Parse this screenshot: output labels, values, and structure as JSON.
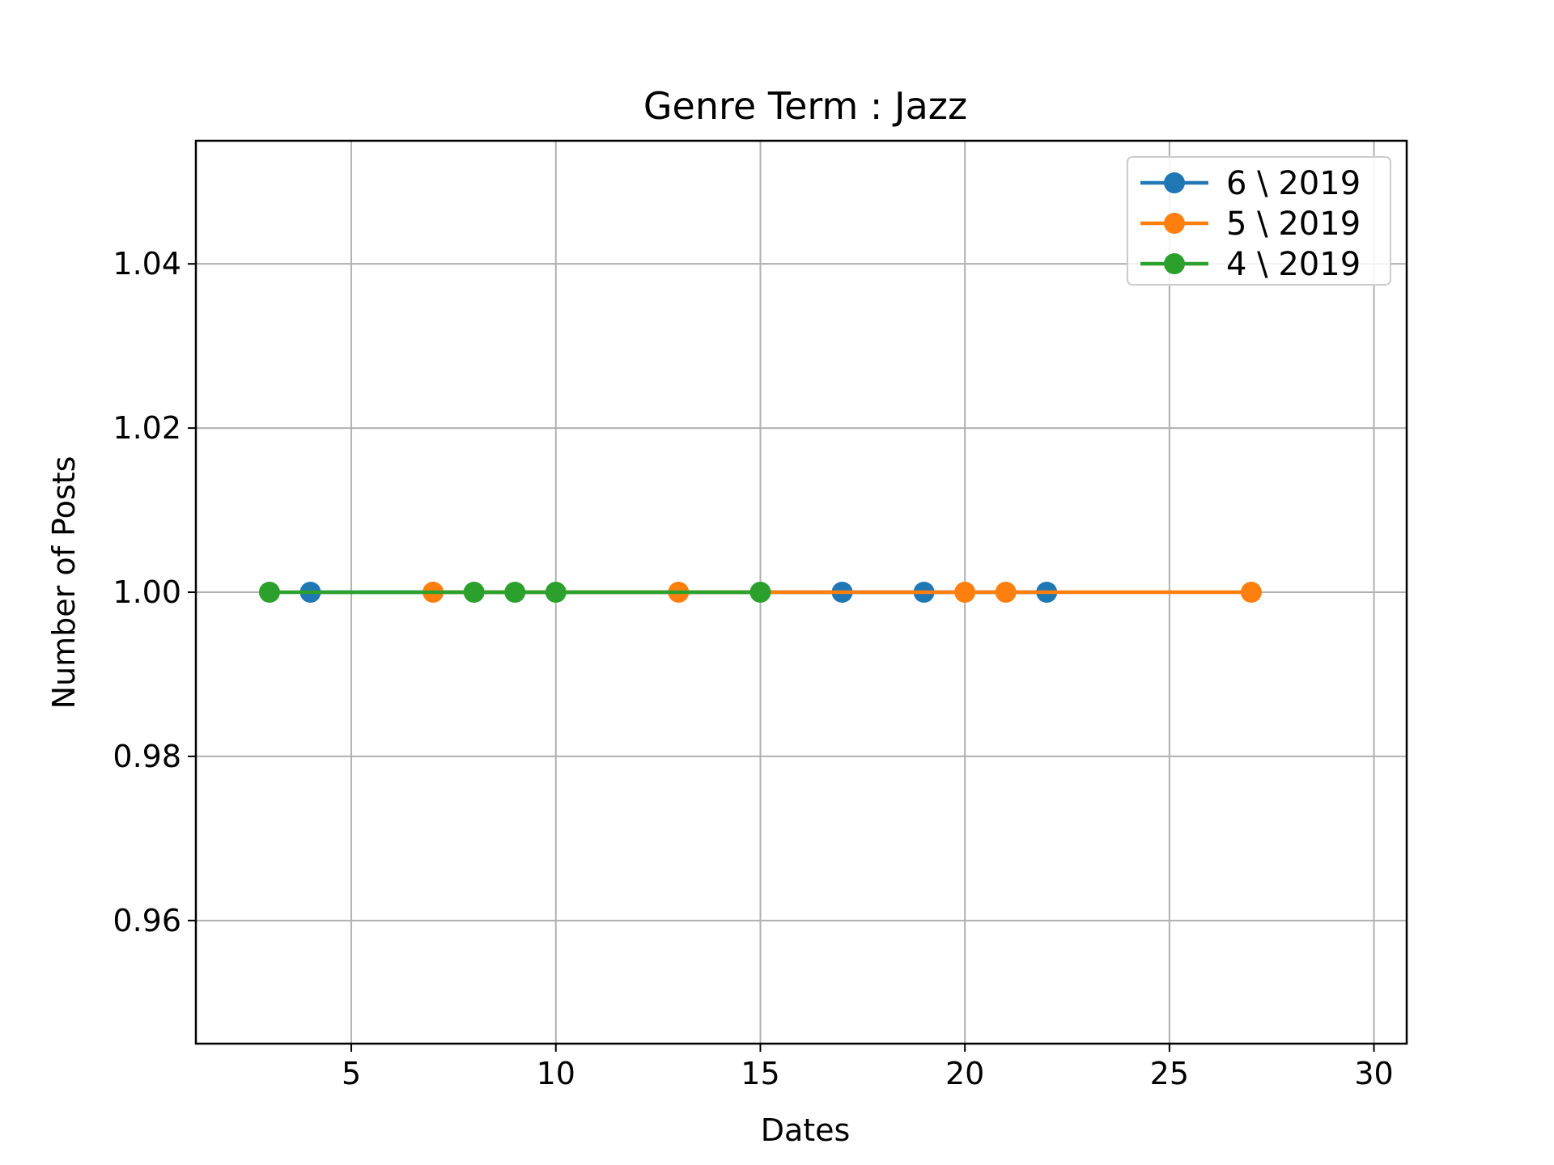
{
  "chart_data": {
    "type": "line",
    "title": "Genre Term : Jazz",
    "xlabel": "Dates",
    "ylabel": "Number of Posts",
    "xlim": [
      1.2,
      30.8
    ],
    "ylim": [
      0.945,
      1.055
    ],
    "xticks": [
      5,
      10,
      15,
      20,
      25,
      30
    ],
    "yticks": [
      0.96,
      0.98,
      1.0,
      1.02,
      1.04
    ],
    "ytick_labels": [
      "0.96",
      "0.98",
      "1.00",
      "1.02",
      "1.04"
    ],
    "grid": true,
    "legend_position": "top-right",
    "series": [
      {
        "name": "6 \\ 2019",
        "color": "#1f77b4",
        "x": [
          4,
          17,
          19,
          22
        ],
        "y": [
          1,
          1,
          1,
          1
        ]
      },
      {
        "name": "5 \\ 2019",
        "color": "#ff7f0e",
        "x": [
          7,
          13,
          20,
          21,
          27
        ],
        "y": [
          1,
          1,
          1,
          1,
          1
        ]
      },
      {
        "name": "4 \\ 2019",
        "color": "#2ca02c",
        "x": [
          3,
          8,
          9,
          10,
          15
        ],
        "y": [
          1,
          1,
          1,
          1,
          1
        ]
      }
    ]
  }
}
